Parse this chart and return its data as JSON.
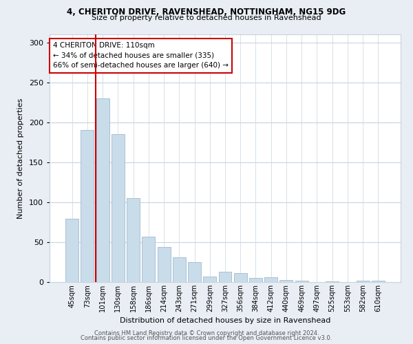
{
  "title1": "4, CHERITON DRIVE, RAVENSHEAD, NOTTINGHAM, NG15 9DG",
  "title2": "Size of property relative to detached houses in Ravenshead",
  "xlabel": "Distribution of detached houses by size in Ravenshead",
  "ylabel": "Number of detached properties",
  "categories": [
    "45sqm",
    "73sqm",
    "101sqm",
    "130sqm",
    "158sqm",
    "186sqm",
    "214sqm",
    "243sqm",
    "271sqm",
    "299sqm",
    "327sqm",
    "356sqm",
    "384sqm",
    "412sqm",
    "440sqm",
    "469sqm",
    "497sqm",
    "525sqm",
    "553sqm",
    "582sqm",
    "610sqm"
  ],
  "values": [
    79,
    190,
    230,
    185,
    105,
    57,
    44,
    31,
    25,
    7,
    13,
    11,
    5,
    6,
    3,
    2,
    0,
    1,
    0,
    2,
    2
  ],
  "bar_color": "#c9dcea",
  "bar_edge_color": "#aabfd4",
  "vline_color": "#cc0000",
  "annotation_text": "4 CHERITON DRIVE: 110sqm\n← 34% of detached houses are smaller (335)\n66% of semi-detached houses are larger (640) →",
  "annotation_box_color": "#ffffff",
  "annotation_box_edge": "#cc0000",
  "ylim": [
    0,
    310
  ],
  "yticks": [
    0,
    50,
    100,
    150,
    200,
    250,
    300
  ],
  "footer1": "Contains HM Land Registry data © Crown copyright and database right 2024.",
  "footer2": "Contains public sector information licensed under the Open Government Licence v3.0.",
  "bg_color": "#e8eef4",
  "plot_bg_color": "#ffffff",
  "grid_color": "#c8d4de"
}
